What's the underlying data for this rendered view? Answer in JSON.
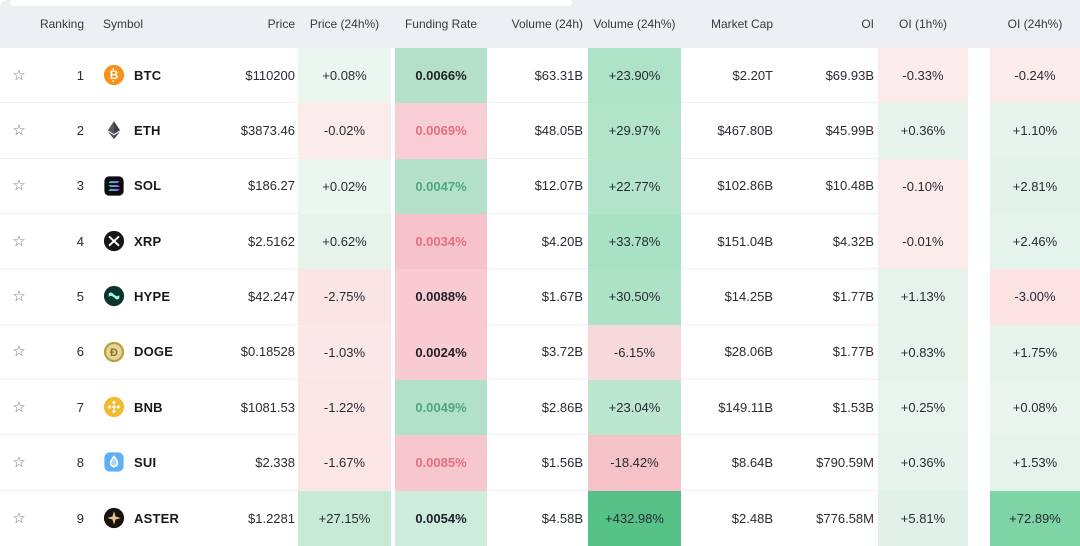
{
  "glyphs": {
    "star": "☆"
  },
  "palette": {
    "header_bg": "#edeff2",
    "row_bg": "#ffffff",
    "positive_text": "#4fa582",
    "negative_text": "#e4707e",
    "neutral_text": "#272b33"
  },
  "table": {
    "columns": {
      "ranking": "Ranking",
      "symbol": "Symbol",
      "price": "Price",
      "price24": "Price (24h%)",
      "funding": "Funding Rate",
      "vol": "Volume (24h)",
      "vol24": "Volume (24h%)",
      "mcap": "Market Cap",
      "oi": "OI",
      "oi1h": "OI (1h%)",
      "oi24h": "OI (24h%)"
    },
    "rows": [
      {
        "ranking": "1",
        "symbol": "BTC",
        "icon": "btc-icon",
        "price": "$110200",
        "price24": {
          "text": "+0.08%",
          "bg": "#eaf6ef"
        },
        "funding": {
          "text": "0.0066%",
          "bg": "#b5e0ca",
          "color": "#202328"
        },
        "vol": "$63.31B",
        "vol24": {
          "text": "+23.90%",
          "bg": "#aee3c7"
        },
        "mcap": "$2.20T",
        "oi": "$69.93B",
        "oi1h": {
          "text": "-0.33%",
          "bg": "#fcebeb"
        },
        "oi24h": {
          "text": "-0.24%",
          "bg": "#fcebeb"
        }
      },
      {
        "ranking": "2",
        "symbol": "ETH",
        "icon": "eth-icon",
        "price": "$3873.46",
        "price24": {
          "text": "-0.02%",
          "bg": "#fcebeb"
        },
        "funding": {
          "text": "0.0069%",
          "bg": "#f8cdd5",
          "color": "#e4707e"
        },
        "vol": "$48.05B",
        "vol24": {
          "text": "+29.97%",
          "bg": "#b2e4c9"
        },
        "mcap": "$467.80B",
        "oi": "$45.99B",
        "oi1h": {
          "text": "+0.36%",
          "bg": "#e7f4ed"
        },
        "oi24h": {
          "text": "+1.10%",
          "bg": "#e7f4ed"
        }
      },
      {
        "ranking": "3",
        "symbol": "SOL",
        "icon": "sol-icon",
        "price": "$186.27",
        "price24": {
          "text": "+0.02%",
          "bg": "#eaf6ef"
        },
        "funding": {
          "text": "0.0047%",
          "bg": "#b5e0ca",
          "color": "#4fa582"
        },
        "vol": "$12.07B",
        "vol24": {
          "text": "+22.77%",
          "bg": "#b4e4cb"
        },
        "mcap": "$102.86B",
        "oi": "$10.48B",
        "oi1h": {
          "text": "-0.10%",
          "bg": "#fcebeb"
        },
        "oi24h": {
          "text": "+2.81%",
          "bg": "#e2f2e9"
        }
      },
      {
        "ranking": "4",
        "symbol": "XRP",
        "icon": "xrp-icon",
        "price": "$2.5162",
        "price24": {
          "text": "+0.62%",
          "bg": "#e6f4ec"
        },
        "funding": {
          "text": "0.0034%",
          "bg": "#f6c3cc",
          "color": "#e4707e"
        },
        "vol": "$4.20B",
        "vol24": {
          "text": "+33.78%",
          "bg": "#a9e1c4"
        },
        "mcap": "$151.04B",
        "oi": "$4.32B",
        "oi1h": {
          "text": "-0.01%",
          "bg": "#fcebeb"
        },
        "oi24h": {
          "text": "+2.46%",
          "bg": "#e4f3eb"
        }
      },
      {
        "ranking": "5",
        "symbol": "HYPE",
        "icon": "hype-icon",
        "price": "$42.247",
        "price24": {
          "text": "-2.75%",
          "bg": "#fbe4e4"
        },
        "funding": {
          "text": "0.0088%",
          "bg": "#f8cad2",
          "color": "#202328"
        },
        "vol": "$1.67B",
        "vol24": {
          "text": "+30.50%",
          "bg": "#aee2c7"
        },
        "mcap": "$14.25B",
        "oi": "$1.77B",
        "oi1h": {
          "text": "+1.13%",
          "bg": "#e5f3ec"
        },
        "oi24h": {
          "text": "-3.00%",
          "bg": "#fbe3e3"
        }
      },
      {
        "ranking": "6",
        "symbol": "DOGE",
        "icon": "doge-icon",
        "price": "$0.18528",
        "price24": {
          "text": "-1.03%",
          "bg": "#fbe7e7"
        },
        "funding": {
          "text": "0.0024%",
          "bg": "#f8cbd3",
          "color": "#202328"
        },
        "vol": "$3.72B",
        "vol24": {
          "text": "-6.15%",
          "bg": "#f8d9db"
        },
        "mcap": "$28.06B",
        "oi": "$1.77B",
        "oi1h": {
          "text": "+0.83%",
          "bg": "#e6f4ec"
        },
        "oi24h": {
          "text": "+1.75%",
          "bg": "#e5f3eb"
        }
      },
      {
        "ranking": "7",
        "symbol": "BNB",
        "icon": "bnb-icon",
        "price": "$1081.53",
        "price24": {
          "text": "-1.22%",
          "bg": "#fbe6e6"
        },
        "funding": {
          "text": "0.0049%",
          "bg": "#b3e0c9",
          "color": "#4fa582"
        },
        "vol": "$2.86B",
        "vol24": {
          "text": "+23.04%",
          "bg": "#bce6d0"
        },
        "mcap": "$149.11B",
        "oi": "$1.53B",
        "oi1h": {
          "text": "+0.25%",
          "bg": "#e8f5ee"
        },
        "oi24h": {
          "text": "+0.08%",
          "bg": "#e9f5ee"
        }
      },
      {
        "ranking": "8",
        "symbol": "SUI",
        "icon": "sui-icon",
        "price": "$2.338",
        "price24": {
          "text": "-1.67%",
          "bg": "#fbe5e5"
        },
        "funding": {
          "text": "0.0085%",
          "bg": "#f7c7cf",
          "color": "#e4707e"
        },
        "vol": "$1.56B",
        "vol24": {
          "text": "-18.42%",
          "bg": "#f4c2c7"
        },
        "mcap": "$8.64B",
        "oi": "$790.59M",
        "oi1h": {
          "text": "+0.36%",
          "bg": "#e7f4ed"
        },
        "oi24h": {
          "text": "+1.53%",
          "bg": "#e5f3eb"
        }
      },
      {
        "ranking": "9",
        "symbol": "ASTER",
        "icon": "aster-icon",
        "price": "$1.2281",
        "price24": {
          "text": "+27.15%",
          "bg": "#c6ead5"
        },
        "funding": {
          "text": "0.0054%",
          "bg": "#cdecdc",
          "color": "#202328"
        },
        "vol": "$4.58B",
        "vol24": {
          "text": "+432.98%",
          "bg": "#57c287"
        },
        "mcap": "$2.48B",
        "oi": "$776.58M",
        "oi1h": {
          "text": "+5.81%",
          "bg": "#dff1e8"
        },
        "oi24h": {
          "text": "+72.89%",
          "bg": "#7fd4a6"
        }
      }
    ]
  }
}
